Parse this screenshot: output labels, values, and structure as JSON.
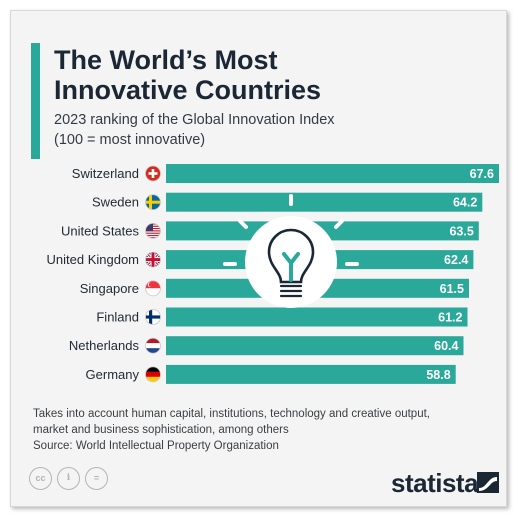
{
  "header": {
    "title_line1": "The World’s Most",
    "title_line2": "Innovative Countries",
    "subtitle_line1": "2023 ranking of the Global Innovation Index",
    "subtitle_line2": "(100 = most innovative)"
  },
  "colors": {
    "accent": "#2aa89a",
    "bar": "#2aa89a",
    "title": "#1b2735"
  },
  "icons": {
    "center": "lightbulb-icon",
    "flags": [
      "switzerland-flag-icon",
      "sweden-flag-icon",
      "united-states-flag-icon",
      "united-kingdom-flag-icon",
      "singapore-flag-icon",
      "finland-flag-icon",
      "netherlands-flag-icon",
      "germany-flag-icon"
    ]
  },
  "chart_data": {
    "type": "bar",
    "orientation": "horizontal",
    "categories": [
      "Switzerland",
      "Sweden",
      "United States",
      "United Kingdom",
      "Singapore",
      "Finland",
      "Netherlands",
      "Germany"
    ],
    "values": [
      67.6,
      64.2,
      63.5,
      62.4,
      61.5,
      61.2,
      60.4,
      58.8
    ],
    "value_labels": [
      "67.6",
      "64.2",
      "63.5",
      "62.4",
      "61.5",
      "61.2",
      "60.4",
      "58.8"
    ],
    "xlim": [
      0,
      67.6
    ],
    "grid": false,
    "legend": "none"
  },
  "footer": {
    "note_line1": "Takes into account human capital, institutions, technology and creative output,",
    "note_line2": "market and business sophistication, among others",
    "source": "Source: World Intellectual Property Organization",
    "license_icons": [
      "creative-commons-icon",
      "attribution-icon",
      "no-derivatives-icon"
    ],
    "license_glyphs": [
      "cc",
      "i",
      "="
    ],
    "brand": "statista"
  }
}
